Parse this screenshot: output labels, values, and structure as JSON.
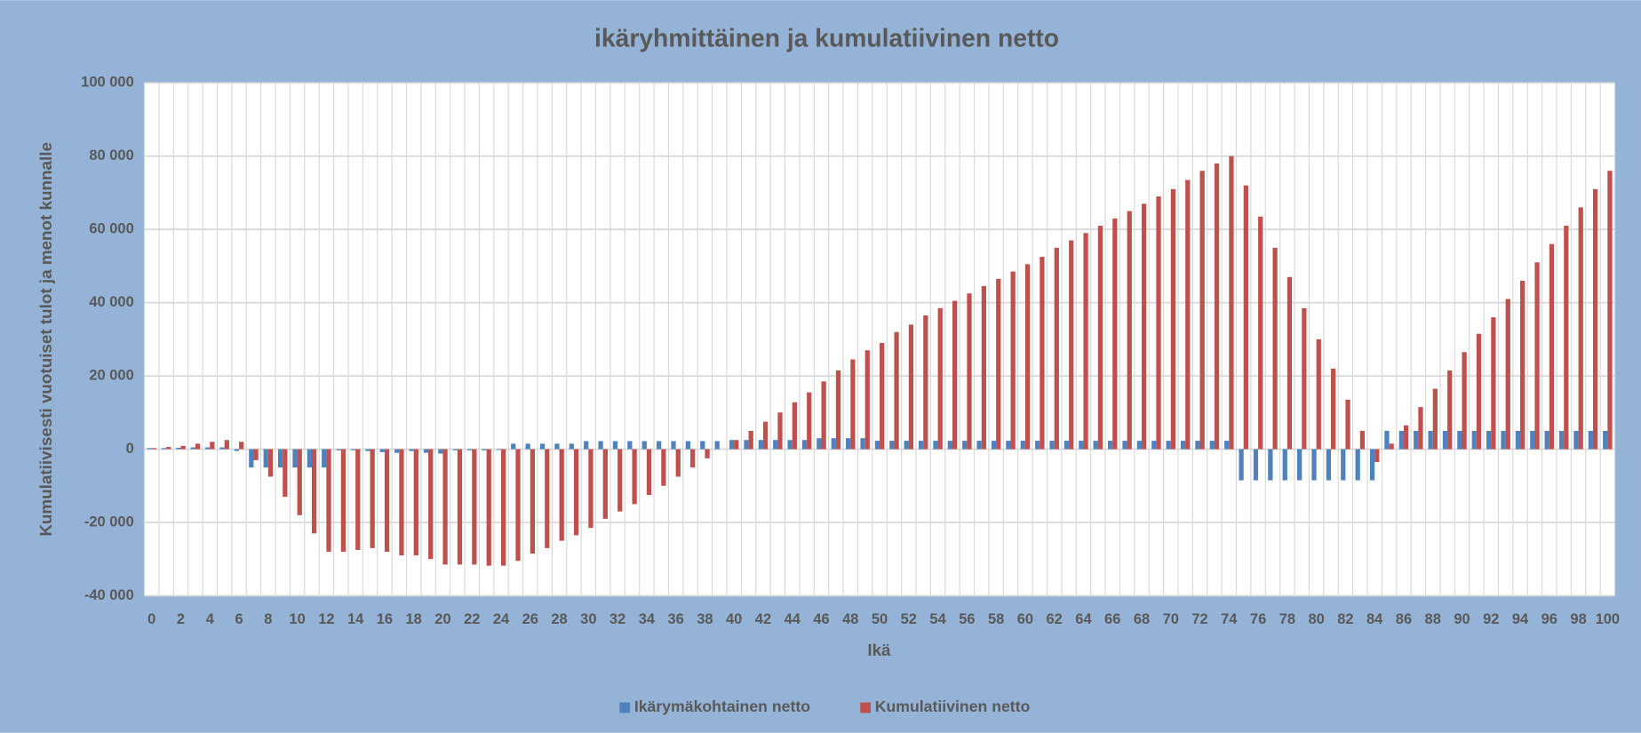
{
  "chart_data": {
    "type": "bar",
    "title": "ikäryhmittäinen ja kumulatiivinen netto",
    "x_label": "Ikä",
    "y_label": "Kumulatiivisesti vuotuiset tulot ja menot kunnalle",
    "categories": [
      0,
      null,
      2,
      null,
      4,
      null,
      6,
      null,
      8,
      null,
      10,
      null,
      12,
      null,
      14,
      null,
      16,
      null,
      18,
      null,
      20,
      null,
      22,
      null,
      24,
      null,
      26,
      null,
      28,
      null,
      30,
      null,
      32,
      null,
      34,
      null,
      36,
      null,
      38,
      null,
      40,
      null,
      42,
      null,
      44,
      null,
      46,
      null,
      48,
      null,
      50,
      null,
      52,
      null,
      54,
      null,
      56,
      null,
      58,
      null,
      60,
      null,
      62,
      null,
      64,
      null,
      66,
      null,
      68,
      null,
      70,
      null,
      72,
      null,
      74,
      null,
      76,
      null,
      78,
      null,
      80,
      null,
      82,
      null,
      84,
      null,
      86,
      null,
      88,
      null,
      90,
      null,
      92,
      null,
      94,
      null,
      96,
      null,
      98,
      null,
      100
    ],
    "series": [
      {
        "name": "Ikärymäkohtainen netto",
        "color": "#4f81bd",
        "values": [
          300,
          300,
          400,
          500,
          500,
          500,
          -500,
          -5000,
          -5000,
          -5000,
          -5000,
          -5000,
          -5000,
          -300,
          -300,
          -500,
          -800,
          -1000,
          -500,
          -1000,
          -1200,
          -300,
          -300,
          -300,
          -200,
          1500,
          1500,
          1500,
          1500,
          1500,
          2200,
          2200,
          2200,
          2200,
          2200,
          2200,
          2200,
          2200,
          2200,
          2200,
          2500,
          2500,
          2500,
          2500,
          2500,
          2500,
          3000,
          3000,
          3000,
          3000,
          2300,
          2300,
          2300,
          2300,
          2300,
          2300,
          2300,
          2300,
          2300,
          2300,
          2300,
          2300,
          2300,
          2300,
          2300,
          2300,
          2300,
          2300,
          2300,
          2300,
          2300,
          2300,
          2300,
          2300,
          2300,
          -8500,
          -8500,
          -8500,
          -8500,
          -8500,
          -8500,
          -8500,
          -8500,
          -8500,
          -8500,
          5000,
          5000,
          5000,
          5000,
          5000,
          5000,
          5000,
          5000,
          5000,
          5000,
          5000,
          5000,
          5000,
          5000,
          5000,
          5000
        ]
      },
      {
        "name": "Kumulatiivinen netto",
        "color": "#c0504d",
        "values": [
          300,
          600,
          900,
          1500,
          2000,
          2500,
          2000,
          -3000,
          -7500,
          -13000,
          -18000,
          -23000,
          -28000,
          -28000,
          -27500,
          -27000,
          -28000,
          -29000,
          -29000,
          -30000,
          -31500,
          -31500,
          -31500,
          -31800,
          -31800,
          -30500,
          -28500,
          -27000,
          -25000,
          -23500,
          -21500,
          -19000,
          -17000,
          -15000,
          -12500,
          -10000,
          -7500,
          -5000,
          -2500,
          0,
          2500,
          5000,
          7500,
          10000,
          12800,
          15500,
          18500,
          21500,
          24500,
          27000,
          29000,
          32000,
          34000,
          36500,
          38500,
          40500,
          42500,
          44500,
          46500,
          48500,
          50500,
          52500,
          55000,
          57000,
          59000,
          61000,
          63000,
          65000,
          67000,
          69000,
          71000,
          73500,
          76000,
          78000,
          80000,
          72000,
          63500,
          55000,
          47000,
          38500,
          30000,
          22000,
          13500,
          5000,
          -3500,
          1500,
          6500,
          11500,
          16500,
          21500,
          26500,
          31500,
          36000,
          41000,
          46000,
          51000,
          56000,
          61000,
          66000,
          71000,
          76000
        ]
      }
    ],
    "ylim": [
      -40000,
      100000
    ],
    "yticks": [
      {
        "value": -40000,
        "label": "-40 000"
      },
      {
        "value": -20000,
        "label": "-20 000"
      },
      0,
      {
        "value": 20000,
        "label": "20 000"
      },
      {
        "value": 40000,
        "label": "40 000"
      },
      {
        "value": 60000,
        "label": "60 000"
      },
      {
        "value": 80000,
        "label": "80 000"
      },
      {
        "value": 100000,
        "label": "100 000"
      }
    ],
    "grid": true,
    "legend": "bottom"
  }
}
